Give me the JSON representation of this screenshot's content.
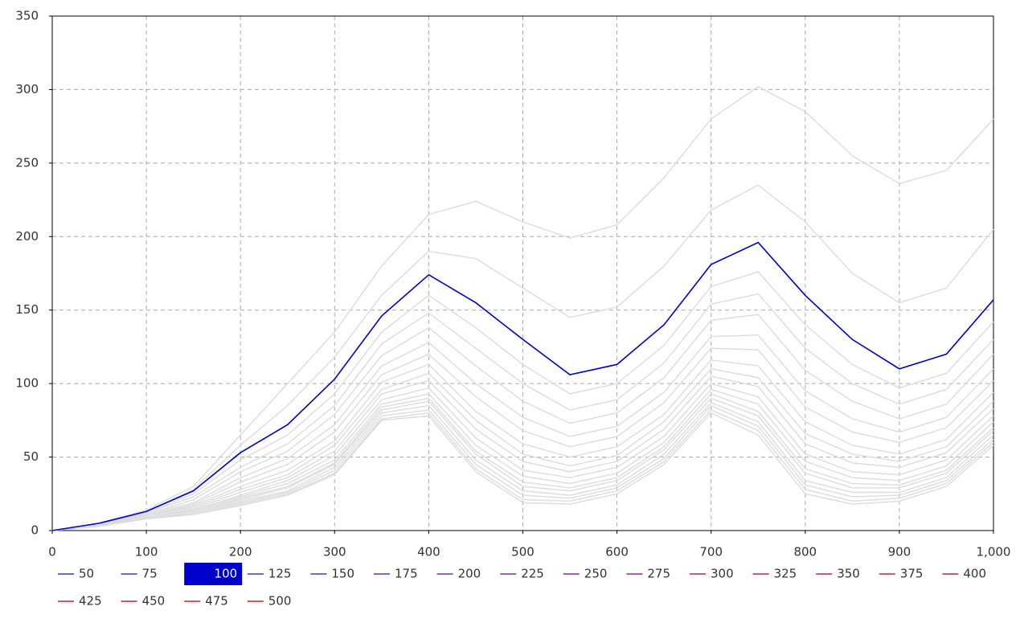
{
  "chart_data": {
    "type": "line",
    "x": [
      0,
      50,
      100,
      150,
      200,
      250,
      300,
      350,
      400,
      450,
      500,
      550,
      600,
      650,
      700,
      750,
      800,
      850,
      900,
      950,
      1000
    ],
    "xlim": [
      0,
      1000
    ],
    "xticks": [
      0,
      100,
      200,
      300,
      400,
      500,
      600,
      700,
      800,
      900,
      {
        "value": 1000,
        "label": "1,000"
      }
    ],
    "ylim": [
      0,
      350
    ],
    "yticks": [
      0,
      50,
      100,
      150,
      200,
      250,
      300,
      350
    ],
    "grid": true,
    "selected_series": "100",
    "selected_color": "#0000cc",
    "inactive_color": "#dcdcdc",
    "series": [
      {
        "name": "50",
        "color": "#2e3bd0",
        "values": [
          0,
          5,
          14,
          30,
          65,
          100,
          135,
          180,
          215,
          224,
          210,
          199,
          208,
          240,
          280,
          302,
          285,
          255,
          236,
          245,
          280
        ]
      },
      {
        "name": "75",
        "color": "#3a36cc",
        "values": [
          0,
          5,
          13,
          28,
          58,
          85,
          118,
          160,
          190,
          185,
          165,
          145,
          152,
          180,
          218,
          235,
          210,
          175,
          155,
          165,
          205
        ]
      },
      {
        "name": "100",
        "color": "#3f33c8",
        "values": [
          0,
          5,
          13,
          27,
          53,
          72,
          103,
          146,
          174,
          155,
          130,
          106,
          113,
          140,
          181,
          196,
          160,
          130,
          110,
          120,
          157
        ]
      },
      {
        "name": "125",
        "color": "#4a33c0",
        "values": [
          0,
          5,
          12,
          25,
          48,
          65,
          93,
          135,
          160,
          138,
          113,
          93,
          100,
          126,
          166,
          176,
          140,
          113,
          97,
          107,
          142
        ]
      },
      {
        "name": "150",
        "color": "#5530b8",
        "values": [
          0,
          4,
          12,
          23,
          43,
          59,
          85,
          127,
          148,
          124,
          100,
          82,
          89,
          114,
          154,
          161,
          124,
          100,
          86,
          96,
          130
        ]
      },
      {
        "name": "175",
        "color": "#6a30b0",
        "values": [
          0,
          4,
          11,
          21,
          40,
          54,
          79,
          119,
          138,
          112,
          88,
          73,
          80,
          104,
          143,
          147,
          109,
          88,
          76,
          86,
          120
        ]
      },
      {
        "name": "200",
        "color": "#7a2ea8",
        "values": [
          0,
          4,
          11,
          19,
          36,
          49,
          72,
          112,
          128,
          100,
          77,
          64,
          71,
          94,
          132,
          133,
          95,
          76,
          67,
          77,
          110
        ]
      },
      {
        "name": "225",
        "color": "#842ca0",
        "values": [
          0,
          4,
          10,
          18,
          33,
          45,
          67,
          106,
          120,
          91,
          68,
          57,
          64,
          87,
          124,
          123,
          84,
          67,
          60,
          70,
          102
        ]
      },
      {
        "name": "250",
        "color": "#8e2a96",
        "values": [
          0,
          4,
          10,
          17,
          30,
          41,
          61,
          101,
          113,
          81,
          59,
          50,
          57,
          79,
          116,
          112,
          74,
          58,
          52,
          62,
          94
        ]
      },
      {
        "name": "275",
        "color": "#962a8a",
        "values": [
          0,
          4,
          10,
          16,
          28,
          38,
          58,
          96,
          107,
          75,
          52,
          44,
          51,
          74,
          110,
          104,
          66,
          52,
          47,
          57,
          88
        ]
      },
      {
        "name": "300",
        "color": "#9e2a7e",
        "values": [
          0,
          4,
          9,
          15,
          26,
          36,
          54,
          93,
          102,
          69,
          47,
          40,
          47,
          69,
          105,
          98,
          59,
          46,
          43,
          53,
          83
        ]
      },
      {
        "name": "325",
        "color": "#a62872",
        "values": [
          0,
          3,
          9,
          14,
          24,
          34,
          51,
          89,
          97,
          63,
          41,
          36,
          43,
          64,
          100,
          91,
          52,
          40,
          38,
          48,
          78
        ]
      },
      {
        "name": "350",
        "color": "#ae2666",
        "values": [
          0,
          3,
          9,
          14,
          23,
          32,
          48,
          86,
          93,
          58,
          37,
          32,
          39,
          60,
          96,
          86,
          47,
          36,
          34,
          44,
          74
        ]
      },
      {
        "name": "375",
        "color": "#b6245a",
        "values": [
          0,
          3,
          9,
          13,
          22,
          30,
          46,
          84,
          90,
          54,
          33,
          29,
          36,
          57,
          93,
          81,
          42,
          32,
          31,
          41,
          70
        ]
      },
      {
        "name": "400",
        "color": "#bc224e",
        "values": [
          0,
          3,
          9,
          13,
          21,
          29,
          45,
          82,
          88,
          52,
          30,
          27,
          34,
          55,
          90,
          78,
          39,
          29,
          29,
          39,
          68
        ]
      },
      {
        "name": "425",
        "color": "#c22244",
        "values": [
          0,
          3,
          8,
          12,
          20,
          27,
          43,
          80,
          85,
          48,
          27,
          24,
          31,
          52,
          87,
          74,
          34,
          26,
          26,
          36,
          65
        ]
      },
      {
        "name": "450",
        "color": "#c62038",
        "values": [
          0,
          3,
          8,
          12,
          19,
          26,
          41,
          78,
          82,
          45,
          24,
          22,
          29,
          49,
          85,
          71,
          31,
          23,
          24,
          34,
          62
        ]
      },
      {
        "name": "475",
        "color": "#ca202e",
        "values": [
          0,
          3,
          8,
          11,
          18,
          25,
          39,
          76,
          80,
          42,
          21,
          20,
          27,
          47,
          82,
          68,
          28,
          20,
          22,
          32,
          60
        ]
      },
      {
        "name": "500",
        "color": "#cc2024",
        "values": [
          0,
          3,
          8,
          11,
          17,
          24,
          38,
          75,
          78,
          40,
          19,
          18,
          25,
          45,
          80,
          65,
          25,
          18,
          20,
          30,
          58
        ]
      }
    ]
  }
}
